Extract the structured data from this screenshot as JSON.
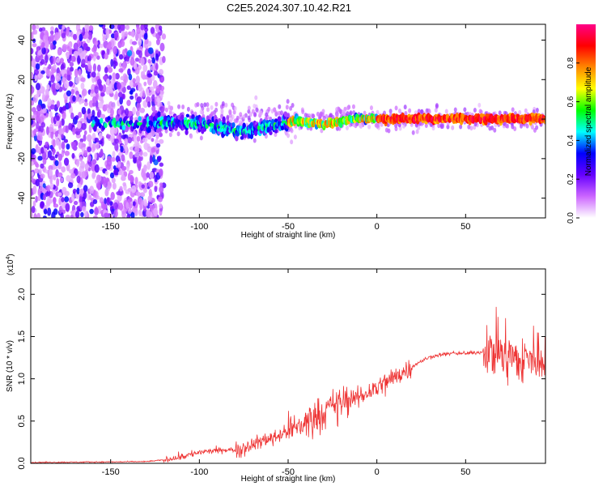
{
  "title": "C2E5.2024.307.10.42.R21",
  "chart_data": [
    {
      "type": "heatmap",
      "xlabel": "Height of straight line (km)",
      "ylabel": "Frequency (Hz)",
      "xlim": [
        -195,
        95
      ],
      "ylim": [
        -50,
        48
      ],
      "xticks": [
        -150,
        -100,
        -50,
        0,
        50
      ],
      "yticks": [
        -40,
        -20,
        0,
        20,
        40
      ],
      "colorbar": {
        "label": "Normalized spectral amplitude",
        "range": [
          0,
          1
        ],
        "ticks": [
          "0.0",
          "0.2",
          "0.4",
          "0.6",
          "0.8"
        ],
        "colormap": [
          "#ffffff",
          "#cc66ff",
          "#6600ff",
          "#0000ff",
          "#00ffff",
          "#00ff00",
          "#ffff00",
          "#ff8800",
          "#ff0000",
          "#ff0088"
        ]
      },
      "grid": false
    },
    {
      "type": "line",
      "xlabel": "Height of straight line (km)",
      "ylabel": "SNR (10 * v/v)",
      "yscale_label": "(x10",
      "yscale_exp": "4",
      "xlim": [
        -195,
        95
      ],
      "ylim": [
        0,
        2.3
      ],
      "xticks": [
        -150,
        -100,
        -50,
        0,
        50
      ],
      "yticks": [
        "0.0",
        "0.5",
        "1.0",
        "1.5",
        "2.0"
      ],
      "color": "#ee3333",
      "envelope_x": [
        -195,
        -130,
        -120,
        -110,
        -100,
        -90,
        -80,
        -70,
        -60,
        -50,
        -40,
        -30,
        -20,
        -10,
        0,
        10,
        20,
        30,
        40,
        50,
        60,
        70,
        80,
        90,
        95
      ],
      "envelope_y": [
        0.01,
        0.02,
        0.04,
        0.08,
        0.13,
        0.15,
        0.16,
        0.22,
        0.3,
        0.38,
        0.48,
        0.62,
        0.72,
        0.78,
        0.9,
        1.02,
        1.15,
        1.26,
        1.3,
        1.3,
        1.32,
        1.34,
        1.2,
        1.25,
        1.3
      ],
      "grid": false
    }
  ]
}
